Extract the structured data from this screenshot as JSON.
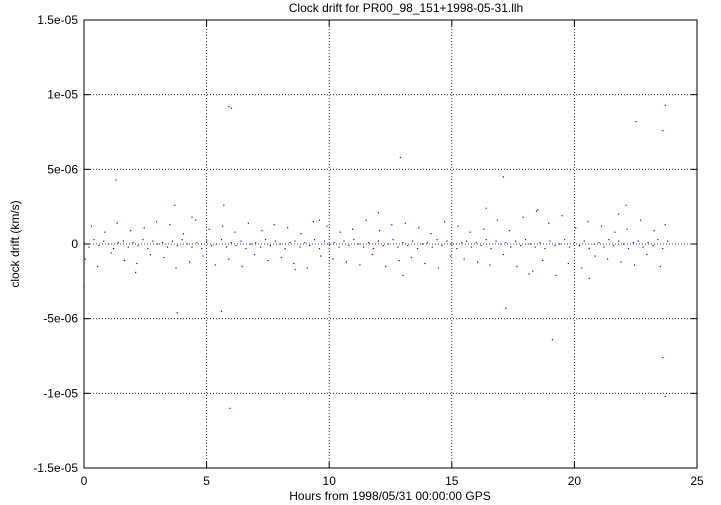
{
  "chart_data": {
    "type": "scatter",
    "title": "Clock drift for PR00_98_151+1998-05-31.llh",
    "xlabel": "Hours from 1998/05/31 00:00:00 GPS",
    "ylabel": "clock drift (km/s)",
    "xlim": [
      0,
      25
    ],
    "ylim": [
      -1.5e-05,
      1.5e-05
    ],
    "x_ticks": [
      0,
      5,
      10,
      15,
      20,
      25
    ],
    "x_tick_labels": [
      "0",
      "5",
      "10",
      "15",
      "20",
      "25"
    ],
    "y_ticks": [
      -1.5e-05,
      -1e-05,
      -5e-06,
      0,
      5e-06,
      1e-05,
      1.5e-05
    ],
    "y_tick_labels": [
      "-1.5e-05",
      "-1e-05",
      "-5e-06",
      "0",
      "5e-06",
      "1e-05",
      "1.5e-05"
    ],
    "grid": true,
    "grid_style": "dotted",
    "series_color": "#0000ff",
    "series": [
      {
        "x": [
          0.0,
          0.2,
          0.4,
          0.6,
          0.8,
          1.0,
          1.2,
          1.4,
          1.6,
          1.8,
          2.0,
          2.2,
          2.4,
          2.6,
          2.8,
          3.0,
          3.2,
          3.4,
          3.6,
          3.8,
          4.0,
          4.2,
          4.4,
          4.6,
          4.8,
          5.0,
          5.2,
          5.4,
          5.6,
          5.8,
          6.0,
          6.2,
          6.4,
          6.6,
          6.8,
          7.0,
          7.2,
          7.4,
          7.6,
          7.8,
          8.0,
          8.2,
          8.4,
          8.6,
          8.8,
          9.0,
          9.2,
          9.4,
          9.6,
          9.8,
          10.0,
          10.2,
          10.4,
          10.6,
          10.8,
          11.0,
          11.2,
          11.4,
          11.6,
          11.8,
          12.0,
          12.2,
          12.4,
          12.6,
          12.8,
          13.0,
          13.2,
          13.4,
          13.6,
          13.8,
          14.0,
          14.2,
          14.4,
          14.6,
          14.8,
          15.0,
          15.2,
          15.4,
          15.6,
          15.8,
          16.0,
          16.2,
          16.4,
          16.6,
          16.8,
          17.0,
          17.2,
          17.4,
          17.6,
          17.8,
          18.0,
          18.2,
          18.4,
          18.6,
          18.8,
          19.0,
          19.2,
          19.4,
          19.6,
          19.8,
          20.0,
          20.2,
          20.4,
          20.6,
          20.8,
          21.0,
          21.2,
          21.4,
          21.6,
          21.8,
          22.0,
          22.2,
          22.4,
          22.6,
          22.8,
          23.0,
          23.2,
          23.4,
          23.6,
          23.8,
          0.05,
          0.3,
          0.55,
          0.85,
          1.1,
          1.35,
          1.65,
          1.9,
          2.15,
          2.45,
          2.7,
          2.95,
          3.25,
          3.5,
          3.75,
          4.05,
          4.3,
          4.55,
          4.85,
          5.1,
          5.35,
          5.65,
          5.9,
          6.15,
          6.45,
          6.7,
          6.95,
          7.25,
          7.5,
          7.75,
          8.05,
          8.3,
          8.55,
          8.85,
          9.1,
          9.35,
          9.65,
          9.9,
          10.15,
          10.45,
          10.7,
          10.95,
          11.25,
          11.5,
          11.75,
          12.05,
          12.3,
          12.55,
          12.85,
          13.1,
          13.35,
          13.65,
          13.9,
          14.15,
          14.45,
          14.7,
          14.95,
          15.25,
          15.5,
          15.75,
          16.05,
          16.3,
          16.55,
          16.85,
          17.1,
          17.35,
          17.65,
          17.9,
          18.15,
          18.45,
          18.7,
          18.95,
          19.25,
          19.5,
          19.75,
          20.05,
          20.3,
          20.55,
          20.85,
          21.1,
          21.35,
          21.65,
          21.9,
          22.15,
          22.45,
          22.7,
          22.95,
          23.25,
          23.5,
          23.7,
          0.0,
          1.3,
          3.7,
          3.8,
          5.6,
          5.9,
          6.0,
          5.7,
          12.9,
          17.1,
          17.2,
          18.3,
          19.1,
          22.1,
          22.5,
          23.7,
          23.6,
          23.6,
          23.7,
          5.95,
          2.1,
          4.4,
          8.6,
          9.6,
          12.0,
          13.0,
          16.4,
          18.5,
          20.6,
          21.8
        ],
        "y": [
          1e-07,
          -2e-07,
          3e-07,
          -1e-07,
          2e-07,
          0,
          -3e-07,
          1e-07,
          2e-07,
          -2e-07,
          1e-07,
          -1e-07,
          3e-07,
          -3e-07,
          2e-07,
          0,
          1e-07,
          -2e-07,
          2e-07,
          -1e-07,
          3e-07,
          0,
          -2e-07,
          1e-07,
          -3e-07,
          2e-07,
          -1e-07,
          0,
          3e-07,
          -2e-07,
          1e-07,
          -1e-07,
          2e-07,
          -3e-07,
          0,
          1e-07,
          -2e-07,
          3e-07,
          -1e-07,
          2e-07,
          0,
          -3e-07,
          1e-07,
          2e-07,
          -2e-07,
          1e-07,
          -1e-07,
          3e-07,
          -3e-07,
          2e-07,
          0,
          1e-07,
          -2e-07,
          2e-07,
          -1e-07,
          3e-07,
          0,
          -2e-07,
          1e-07,
          -3e-07,
          2e-07,
          -1e-07,
          0,
          3e-07,
          -2e-07,
          1e-07,
          -1e-07,
          2e-07,
          -3e-07,
          0,
          1e-07,
          -2e-07,
          3e-07,
          -1e-07,
          2e-07,
          0,
          -3e-07,
          1e-07,
          2e-07,
          -2e-07,
          1e-07,
          -1e-07,
          3e-07,
          -3e-07,
          2e-07,
          0,
          1e-07,
          -2e-07,
          2e-07,
          -1e-07,
          3e-07,
          0,
          -2e-07,
          1e-07,
          -3e-07,
          2e-07,
          -1e-07,
          0,
          3e-07,
          -2e-07,
          1e-07,
          -1e-07,
          2e-07,
          -3e-07,
          0,
          1e-07,
          -2e-07,
          3e-07,
          -1e-07,
          2e-07,
          0,
          -3e-07,
          1e-07,
          2e-07,
          -2e-07,
          1e-07,
          -1e-07,
          3e-07,
          -3e-07,
          2e-07,
          -1e-06,
          1.2e-06,
          -1.5e-06,
          8e-07,
          -6e-07,
          1.4e-06,
          -1.1e-06,
          9e-07,
          -1.3e-06,
          1.1e-06,
          -7e-07,
          1.5e-06,
          -9e-07,
          1.3e-06,
          -1.6e-06,
          7e-07,
          -1.2e-06,
          1.6e-06,
          -8e-07,
          1e-06,
          -1.4e-06,
          1.2e-06,
          -1e-06,
          8e-07,
          -1.5e-06,
          1.4e-06,
          -7e-07,
          9e-07,
          -1.1e-06,
          1.3e-06,
          -9e-07,
          1.1e-06,
          -1.3e-06,
          7e-07,
          -1.6e-06,
          1.5e-06,
          -8e-07,
          1.2e-06,
          -1e-06,
          8e-07,
          -1.2e-06,
          1e-06,
          -1.4e-06,
          1.6e-06,
          -7e-07,
          9e-07,
          -1.5e-06,
          1.3e-06,
          -1.1e-06,
          1.4e-06,
          -9e-07,
          1.1e-06,
          -1.3e-06,
          7e-07,
          -1.6e-06,
          1.5e-06,
          -8e-07,
          1.2e-06,
          -1e-06,
          8e-07,
          -1.2e-06,
          1e-06,
          -1.4e-06,
          1.6e-06,
          -7e-07,
          9e-07,
          -1.5e-06,
          1.8e-06,
          -2e-06,
          2.2e-06,
          -1.1e-06,
          1.4e-06,
          -2.1e-06,
          1.9e-06,
          -1.3e-06,
          1.1e-06,
          -1.6e-06,
          1.5e-06,
          -8e-07,
          1.2e-06,
          -1e-06,
          8e-07,
          -1.2e-06,
          1e-06,
          -1.4e-06,
          1.6e-06,
          -7e-07,
          9e-07,
          -1.5e-06,
          1.3e-06,
          -2.8e-06,
          4.3e-06,
          2.6e-06,
          -4.6e-06,
          -4.5e-06,
          9.2e-06,
          9.1e-06,
          2.6e-06,
          5.8e-06,
          4.5e-06,
          -4.3e-06,
          -1.8e-06,
          -6.4e-06,
          2.6e-06,
          8.2e-06,
          9.3e-06,
          7.6e-06,
          -7.6e-06,
          -1.02e-05,
          -1.1e-05,
          -1.9e-06,
          1.8e-06,
          -1.7e-06,
          1.6e-06,
          2.1e-06,
          -2.1e-06,
          2.4e-06,
          2.3e-06,
          -2.3e-06,
          2e-06
        ]
      }
    ]
  }
}
